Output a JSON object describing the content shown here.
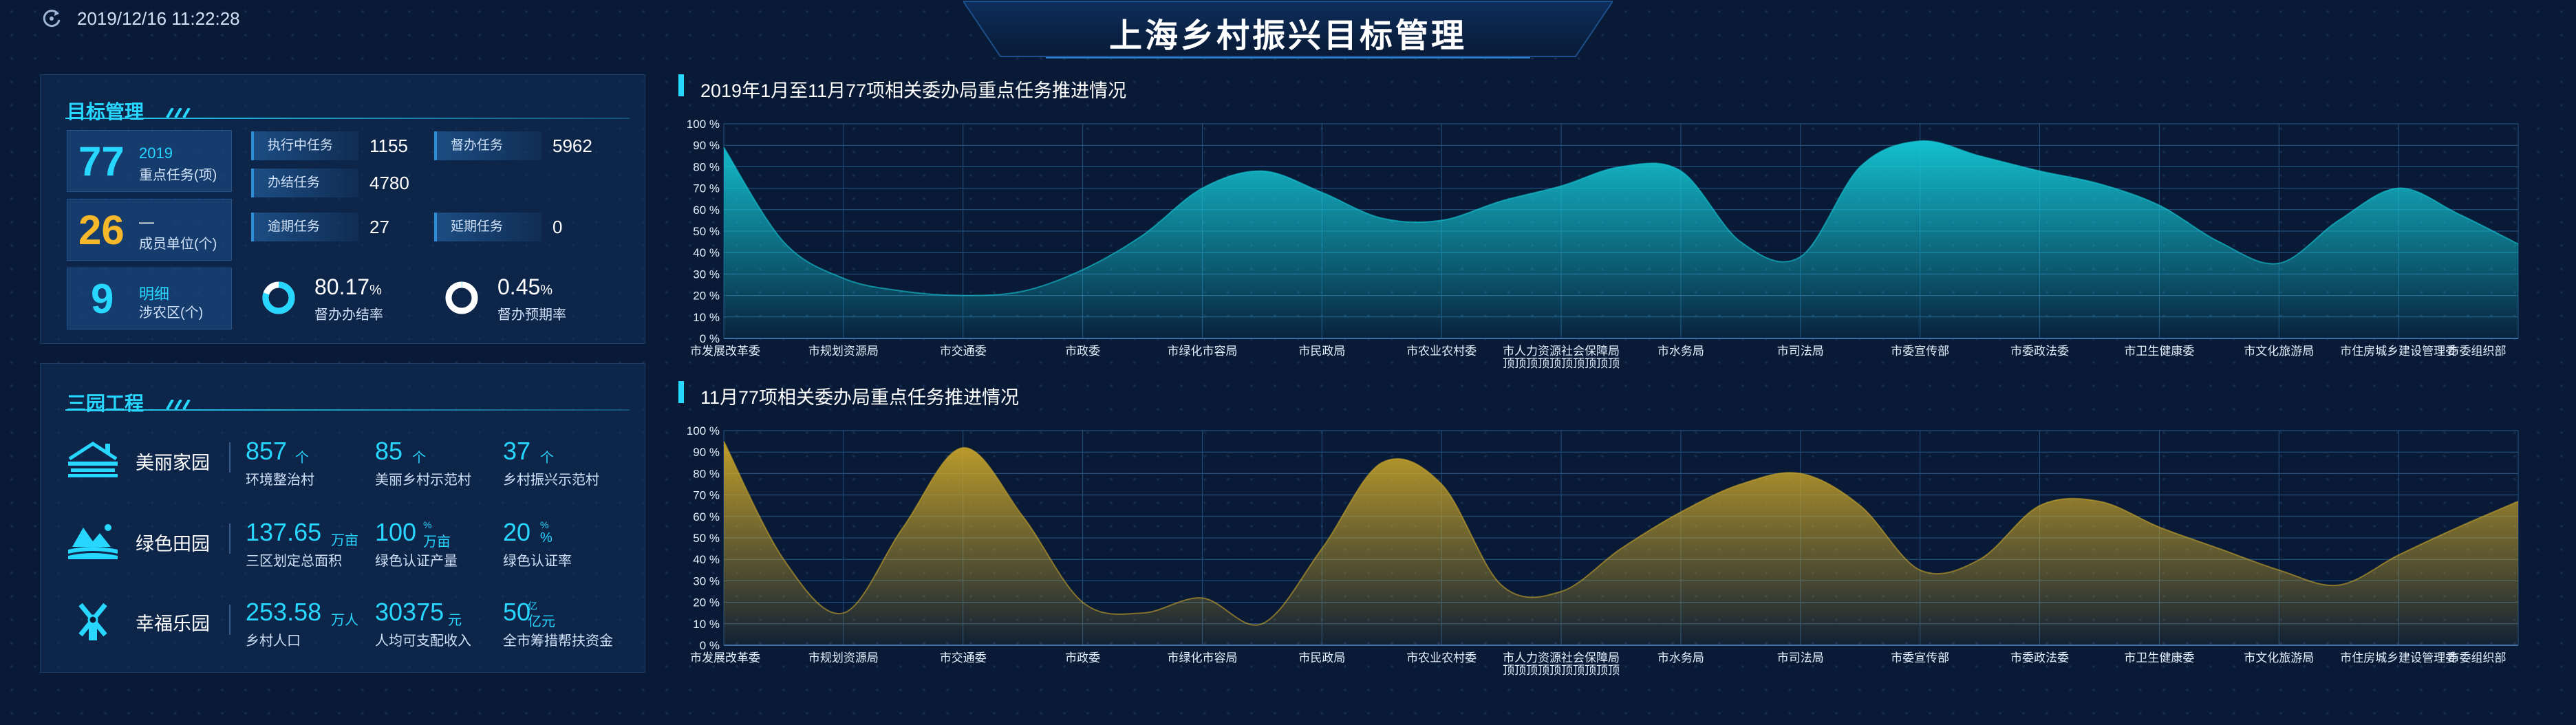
{
  "header": {
    "datetime": "2019/12/16 11:22:28",
    "title": "上海乡村振兴目标管理"
  },
  "goal_panel": {
    "title": "目标管理",
    "key_tasks": {
      "value": "77",
      "line1": "2019",
      "line2": "重点任务(项)"
    },
    "members": {
      "value": "26",
      "line1": "—",
      "line2": "成员单位(个)"
    },
    "districts": {
      "value": "9",
      "line1": "明细",
      "line2": "涉农区(个)"
    },
    "stats": [
      {
        "label": "执行中任务",
        "value": "1155"
      },
      {
        "label": "督办任务",
        "value": "5962"
      },
      {
        "label": "办结任务",
        "value": "4780"
      },
      {
        "label": "逾期任务",
        "value": "27"
      },
      {
        "label": "延期任务",
        "value": "0"
      }
    ],
    "rates": [
      {
        "value": "80.17",
        "unit": "%",
        "label": "督办办结率",
        "fraction": 0.8017
      },
      {
        "value": "0.45",
        "unit": "%",
        "label": "督办预期率",
        "fraction": 0.0045
      }
    ]
  },
  "garden_panel": {
    "title": "三园工程",
    "rows": [
      {
        "name": "美丽家园",
        "icon": "house-icon",
        "metrics": [
          {
            "value": "857",
            "unit": "个",
            "label": "环境整治村"
          },
          {
            "value": "85",
            "unit": "个",
            "label": "美丽乡村示范村"
          },
          {
            "value": "37",
            "unit": "个",
            "label": "乡村振兴示范村"
          }
        ]
      },
      {
        "name": "绿色田园",
        "icon": "field-icon",
        "metrics": [
          {
            "value": "137.65",
            "unit": "万亩",
            "label": "三区划定总面积"
          },
          {
            "value": "100",
            "unit_top": "%",
            "unit": "万亩",
            "label": "绿色认证产量"
          },
          {
            "value": "20",
            "unit_top": "%",
            "unit": "%",
            "label": "绿色认证率"
          }
        ]
      },
      {
        "name": "幸福乐园",
        "icon": "windmill-icon",
        "metrics": [
          {
            "value": "253.58",
            "unit": "万人",
            "label": "乡村人口"
          },
          {
            "value": "30375",
            "unit": "元",
            "label": "人均可支配收入"
          },
          {
            "value": "50",
            "unit_top": "亿",
            "unit": "亿元",
            "label": "全市筹措帮扶资金"
          }
        ]
      }
    ]
  },
  "chart_data": [
    {
      "type": "area",
      "title": "2019年1月至11月77项相关委办局重点任务推进情况",
      "color": "#14c8d6",
      "ylim": [
        0,
        100
      ],
      "yticks": [
        "0 %",
        "10 %",
        "20 %",
        "30 %",
        "40 %",
        "50 %",
        "60 %",
        "70 %",
        "80 %",
        "90 %",
        "100 %"
      ],
      "categories": [
        "市发展改革委",
        "市规划资源局",
        "市交通委",
        "市政委",
        "市绿化市容局",
        "市民政局",
        "市农业农村委",
        "市人力资源社会保障局",
        "市水务局",
        "市司法局",
        "市委宣传部",
        "市委政法委",
        "市卫生健康委",
        "市文化旅游局",
        "市住房城乡建设管理委",
        "市委组织部"
      ],
      "category_extra": {
        "index": 7,
        "text": "顶顶顶顶顶顶顶顶顶顶"
      },
      "x": [
        0,
        0.5,
        1,
        1.5,
        2,
        2.5,
        3,
        3.5,
        4,
        4.5,
        5,
        5.5,
        6,
        6.5,
        7,
        7.5,
        8,
        8.5,
        9,
        9.5,
        10,
        10.5,
        11,
        11.5,
        12,
        12.5,
        13,
        13.5,
        14,
        14.5,
        15
      ],
      "values": [
        89,
        45,
        28,
        22,
        20,
        22,
        32,
        48,
        70,
        78,
        68,
        56,
        55,
        64,
        71,
        80,
        78,
        45,
        38,
        80,
        92,
        85,
        78,
        72,
        62,
        45,
        35,
        55,
        70,
        58,
        44
      ]
    },
    {
      "type": "area",
      "title": "11月77项相关委办局重点任务推进情况",
      "color": "#c8a42a",
      "ylim": [
        0,
        100
      ],
      "yticks": [
        "0 %",
        "10 %",
        "20 %",
        "30 %",
        "40 %",
        "50 %",
        "60 %",
        "70 %",
        "80 %",
        "90 %",
        "100 %"
      ],
      "categories": [
        "市发展改革委",
        "市规划资源局",
        "市交通委",
        "市政委",
        "市绿化市容局",
        "市民政局",
        "市农业农村委",
        "市人力资源社会保障局",
        "市水务局",
        "市司法局",
        "市委宣传部",
        "市委政法委",
        "市卫生健康委",
        "市文化旅游局",
        "市住房城乡建设管理委",
        "市委组织部"
      ],
      "category_extra": {
        "index": 7,
        "text": "顶顶顶顶顶顶顶顶顶顶"
      },
      "x": [
        0,
        0.5,
        1,
        1.5,
        2,
        2.5,
        3,
        3.5,
        4,
        4.5,
        5,
        5.5,
        6,
        6.5,
        7,
        7.5,
        8,
        8.5,
        9,
        9.5,
        10,
        10.5,
        11,
        11.5,
        12,
        12.5,
        13,
        13.5,
        14,
        14.5,
        15
      ],
      "values": [
        95,
        40,
        15,
        55,
        92,
        60,
        20,
        15,
        22,
        10,
        45,
        85,
        75,
        28,
        25,
        45,
        62,
        75,
        80,
        65,
        35,
        40,
        65,
        67,
        55,
        45,
        35,
        28,
        42,
        55,
        67
      ]
    }
  ]
}
